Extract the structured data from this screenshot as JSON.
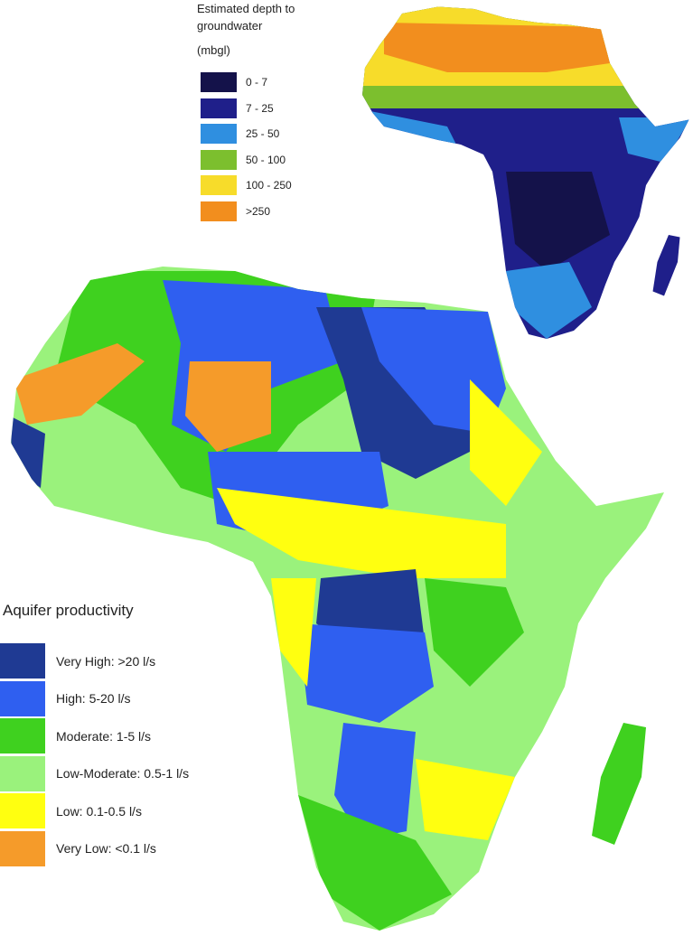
{
  "depth_legend": {
    "title": "Estimated depth to groundwater",
    "unit": "(mbgl)",
    "items": [
      {
        "label": "0 - 7",
        "color": "#14124a"
      },
      {
        "label": "7 - 25",
        "color": "#1f1f8a"
      },
      {
        "label": "25 - 50",
        "color": "#2f8fe0"
      },
      {
        "label": "50 - 100",
        "color": "#7cbf2e"
      },
      {
        "label": "100 - 250",
        "color": "#f7dc2a"
      },
      {
        "label": ">250",
        "color": "#f28e1e"
      }
    ]
  },
  "productivity_legend": {
    "title": "Aquifer productivity",
    "items": [
      {
        "label": "Very High: >20 l/s",
        "color": "#1f3a93"
      },
      {
        "label": "High: 5-20 l/s",
        "color": "#2f5ff0"
      },
      {
        "label": "Moderate: 1-5 l/s",
        "color": "#3fd11f"
      },
      {
        "label": "Low-Moderate: 0.5-1 l/s",
        "color": "#9af27c"
      },
      {
        "label": "Low: 0.1-0.5 l/s",
        "color": "#ffff10"
      },
      {
        "label": "Very Low: <0.1 l/s",
        "color": "#f59b2a"
      }
    ]
  }
}
